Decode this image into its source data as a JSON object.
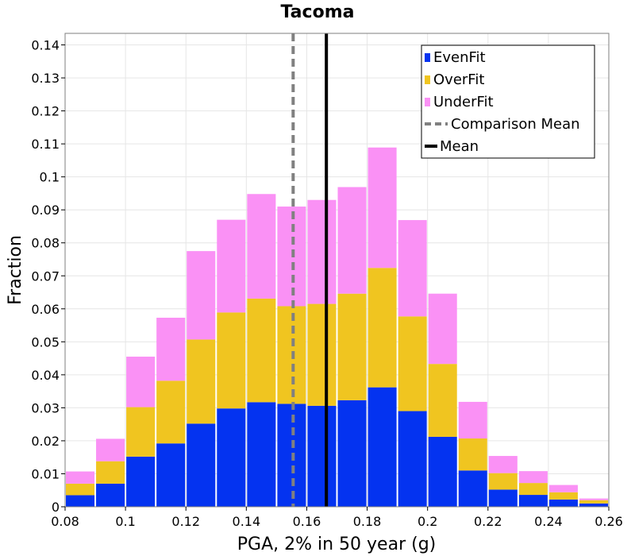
{
  "chart_data": {
    "type": "bar",
    "title": "Tacoma",
    "xlabel": "PGA, 2% in 50 year (g)",
    "ylabel": "Fraction",
    "xlim": [
      0.08,
      0.26
    ],
    "ylim": [
      0,
      0.1435
    ],
    "grid": true,
    "legend_placement": "top-right",
    "bin_width": 0.01,
    "stacked": true,
    "x": [
      0.085,
      0.095,
      0.105,
      0.115,
      0.125,
      0.135,
      0.145,
      0.155,
      0.165,
      0.175,
      0.185,
      0.195,
      0.205,
      0.215,
      0.225,
      0.235,
      0.245,
      0.255
    ],
    "x_ticks": [
      "0.08",
      "0.1",
      "0.12",
      "0.14",
      "0.16",
      "0.18",
      "0.2",
      "0.22",
      "0.24",
      "0.26"
    ],
    "y_ticks": [
      "0",
      "0.01",
      "0.02",
      "0.03",
      "0.04",
      "0.05",
      "0.06",
      "0.07",
      "0.08",
      "0.09",
      "0.1",
      "0.11",
      "0.12",
      "0.13",
      "0.14"
    ],
    "series": [
      {
        "name": "EvenFit",
        "color": "#0433f0",
        "values": [
          0.0035,
          0.007,
          0.0152,
          0.0192,
          0.0252,
          0.0298,
          0.0317,
          0.0312,
          0.0306,
          0.0323,
          0.0362,
          0.029,
          0.0212,
          0.011,
          0.0052,
          0.0036,
          0.0022,
          0.001
        ]
      },
      {
        "name": "OverFit",
        "color": "#f0c520",
        "values": [
          0.0035,
          0.0068,
          0.015,
          0.019,
          0.0255,
          0.0291,
          0.0314,
          0.0296,
          0.0309,
          0.0323,
          0.0362,
          0.0287,
          0.0221,
          0.0097,
          0.005,
          0.0036,
          0.0022,
          0.001
        ]
      },
      {
        "name": "UnderFit",
        "color": "#fa91f5",
        "values": [
          0.0037,
          0.0068,
          0.0153,
          0.0191,
          0.0268,
          0.0281,
          0.0317,
          0.0302,
          0.0315,
          0.0323,
          0.0365,
          0.0292,
          0.0213,
          0.0111,
          0.0052,
          0.0036,
          0.0022,
          0.0005
        ]
      }
    ],
    "lines": [
      {
        "name": "Comparison Mean",
        "x": 0.1555,
        "color": "#808080",
        "style": "dashed"
      },
      {
        "name": "Mean",
        "x": 0.1665,
        "color": "#000000",
        "style": "solid"
      }
    ]
  }
}
